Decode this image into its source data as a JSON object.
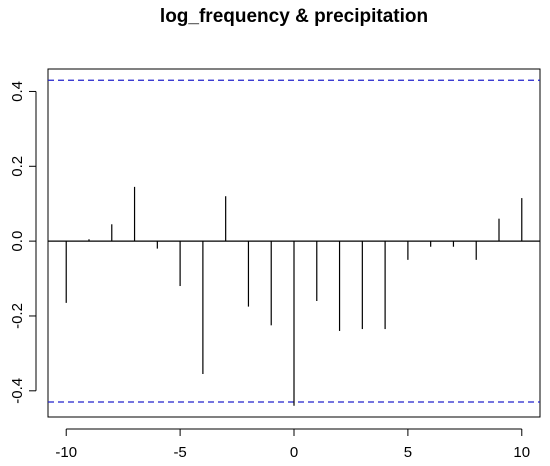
{
  "chart_data": {
    "type": "bar",
    "title": "log_frequency & precipitation",
    "xlabel": "",
    "ylabel": "",
    "x": [
      -10,
      -9,
      -8,
      -7,
      -6,
      -5,
      -4,
      -3,
      -2,
      -1,
      0,
      1,
      2,
      3,
      4,
      5,
      6,
      7,
      8,
      9,
      10
    ],
    "values": [
      -0.165,
      0.005,
      0.045,
      0.145,
      -0.02,
      -0.12,
      -0.355,
      0.12,
      -0.175,
      -0.225,
      -0.44,
      -0.16,
      -0.24,
      -0.235,
      -0.235,
      -0.05,
      -0.015,
      -0.015,
      -0.05,
      0.06,
      0.115
    ],
    "xlim": [
      -10.8,
      10.8
    ],
    "ylim": [
      -0.47,
      0.46
    ],
    "x_ticks": [
      -10,
      -5,
      0,
      5,
      10
    ],
    "x_tick_labels": [
      "-10",
      "-5",
      "0",
      "5",
      "10"
    ],
    "y_ticks": [
      -0.4,
      -0.2,
      0.0,
      0.2,
      0.4
    ],
    "y_tick_labels": [
      "-0.4",
      "-0.2",
      "0.0",
      "0.2",
      "0.4"
    ],
    "confidence_bounds": [
      0.43,
      -0.43
    ],
    "grid": false,
    "colors": {
      "bars": "#000000",
      "bounds": "#2222cc",
      "zero_line": "#000000"
    }
  }
}
